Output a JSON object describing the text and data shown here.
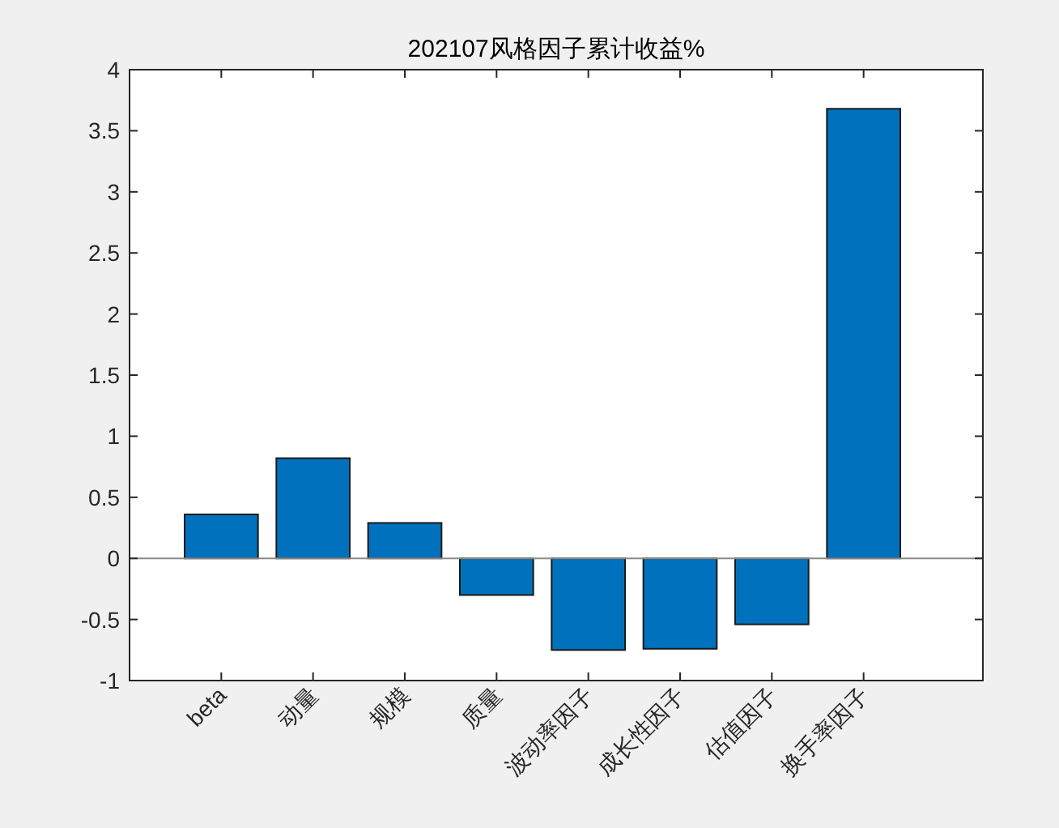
{
  "chart_data": {
    "type": "bar",
    "title": "202107风格因子累计收益%",
    "categories": [
      "beta",
      "动量",
      "规模",
      "质量",
      "波动率因子",
      "成长性因子",
      "估值因子",
      "换手率因子"
    ],
    "values": [
      0.36,
      0.82,
      0.29,
      -0.3,
      -0.75,
      -0.74,
      -0.54,
      3.68
    ],
    "color": "#0072bd",
    "ylim": [
      -1,
      4
    ],
    "yticks": [
      -1,
      -0.5,
      0,
      0.5,
      1,
      1.5,
      2,
      2.5,
      3,
      3.5,
      4
    ]
  }
}
